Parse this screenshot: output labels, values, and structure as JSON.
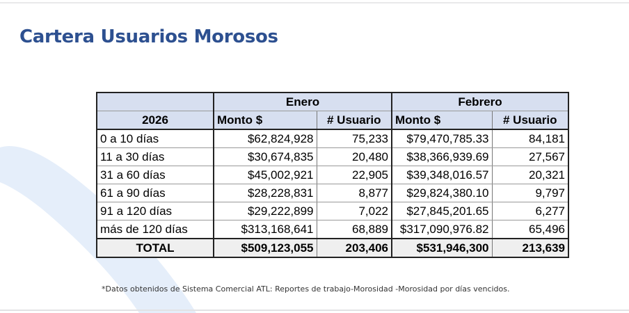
{
  "title": "Cartera Usuarios Morosos",
  "colors": {
    "title": "#2d5090",
    "header_fill": "#d7dff0",
    "total_fill": "#efefef",
    "decoration": "#e5eefa"
  },
  "table": {
    "year_label": "2026",
    "months": [
      "Enero",
      "Febrero"
    ],
    "col_monto": "Monto $",
    "col_usuario": "# Usuario",
    "rows": [
      {
        "range": "0 a 10 días",
        "enero_monto": "$62,824,928",
        "enero_usuarios": "75,233",
        "febrero_monto": "$79,470,785.33",
        "febrero_usuarios": "84,181"
      },
      {
        "range": "11 a 30 días",
        "enero_monto": "$30,674,835",
        "enero_usuarios": "20,480",
        "febrero_monto": "$38,366,939.69",
        "febrero_usuarios": "27,567"
      },
      {
        "range": "31 a 60 días",
        "enero_monto": "$45,002,921",
        "enero_usuarios": "22,905",
        "febrero_monto": "$39,348,016.57",
        "febrero_usuarios": "20,321"
      },
      {
        "range": "61 a 90 días",
        "enero_monto": "$28,228,831",
        "enero_usuarios": "8,877",
        "febrero_monto": "$29,824,380.10",
        "febrero_usuarios": "9,797"
      },
      {
        "range": "91 a 120 días",
        "enero_monto": "$29,222,899",
        "enero_usuarios": "7,022",
        "febrero_monto": "$27,845,201.65",
        "febrero_usuarios": "6,277"
      },
      {
        "range": "más de 120 días",
        "enero_monto": "$313,168,641",
        "enero_usuarios": "68,889",
        "febrero_monto": "$317,090,976.82",
        "febrero_usuarios": "65,496"
      }
    ],
    "total": {
      "label": "TOTAL",
      "enero_monto": "$509,123,055",
      "enero_usuarios": "203,406",
      "febrero_monto": "$531,946,300",
      "febrero_usuarios": "213,639"
    }
  },
  "footnote": "*Datos obtenidos de Sistema Comercial ATL: Reportes de trabajo-Morosidad -Morosidad por días vencidos."
}
